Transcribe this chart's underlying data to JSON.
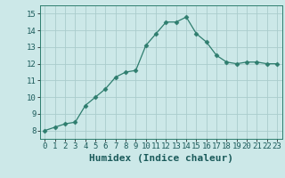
{
  "x": [
    0,
    1,
    2,
    3,
    4,
    5,
    6,
    7,
    8,
    9,
    10,
    11,
    12,
    13,
    14,
    15,
    16,
    17,
    18,
    19,
    20,
    21,
    22,
    23
  ],
  "y": [
    8.0,
    8.2,
    8.4,
    8.5,
    9.5,
    10.0,
    10.5,
    11.2,
    11.5,
    11.6,
    13.1,
    13.8,
    14.5,
    14.5,
    14.8,
    13.8,
    13.3,
    12.5,
    12.1,
    12.0,
    12.1,
    12.1,
    12.0,
    12.0
  ],
  "line_color": "#2e7d6e",
  "marker": "D",
  "marker_size": 2.5,
  "bg_color": "#cce8e8",
  "grid_color": "#aacccc",
  "xlabel": "Humidex (Indice chaleur)",
  "xlim": [
    -0.5,
    23.5
  ],
  "ylim": [
    7.5,
    15.5
  ],
  "yticks": [
    8,
    9,
    10,
    11,
    12,
    13,
    14,
    15
  ],
  "xticks": [
    0,
    1,
    2,
    3,
    4,
    5,
    6,
    7,
    8,
    9,
    10,
    11,
    12,
    13,
    14,
    15,
    16,
    17,
    18,
    19,
    20,
    21,
    22,
    23
  ],
  "tick_fontsize": 6.5,
  "xlabel_fontsize": 8
}
